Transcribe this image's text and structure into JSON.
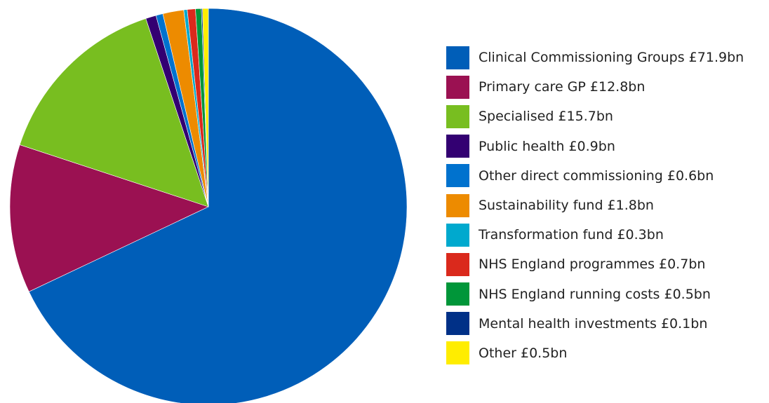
{
  "chart_data": {
    "type": "pie",
    "start_angle": "12 o'clock",
    "direction": "clockwise",
    "slices": [
      {
        "label": "Clinical Commissioning Groups £71.9bn",
        "value": 71.9,
        "color": "#005EB8"
      },
      {
        "label": "Primary care GP £12.8bn",
        "value": 12.8,
        "color": "#9B1152"
      },
      {
        "label": "Specialised £15.7bn",
        "value": 15.7,
        "color": "#78BE20"
      },
      {
        "label": "Public health £0.9bn",
        "value": 0.9,
        "color": "#330072"
      },
      {
        "label": "Other direct commissioning £0.6bn",
        "value": 0.6,
        "color": "#0072CE"
      },
      {
        "label": "Sustainability fund £1.8bn",
        "value": 1.8,
        "color": "#ED8B00"
      },
      {
        "label": "Transformation fund £0.3bn",
        "value": 0.3,
        "color": "#00A9CE"
      },
      {
        "label": "NHS England programmes £0.7bn",
        "value": 0.7,
        "color": "#DA291C"
      },
      {
        "label": "NHS England running costs £0.5bn",
        "value": 0.5,
        "color": "#009639"
      },
      {
        "label": "Mental health investments £0.1bn",
        "value": 0.1,
        "color": "#003087"
      },
      {
        "label": "Other £0.5bn",
        "value": 0.5,
        "color": "#FFED00"
      }
    ],
    "legend_position": "right"
  }
}
